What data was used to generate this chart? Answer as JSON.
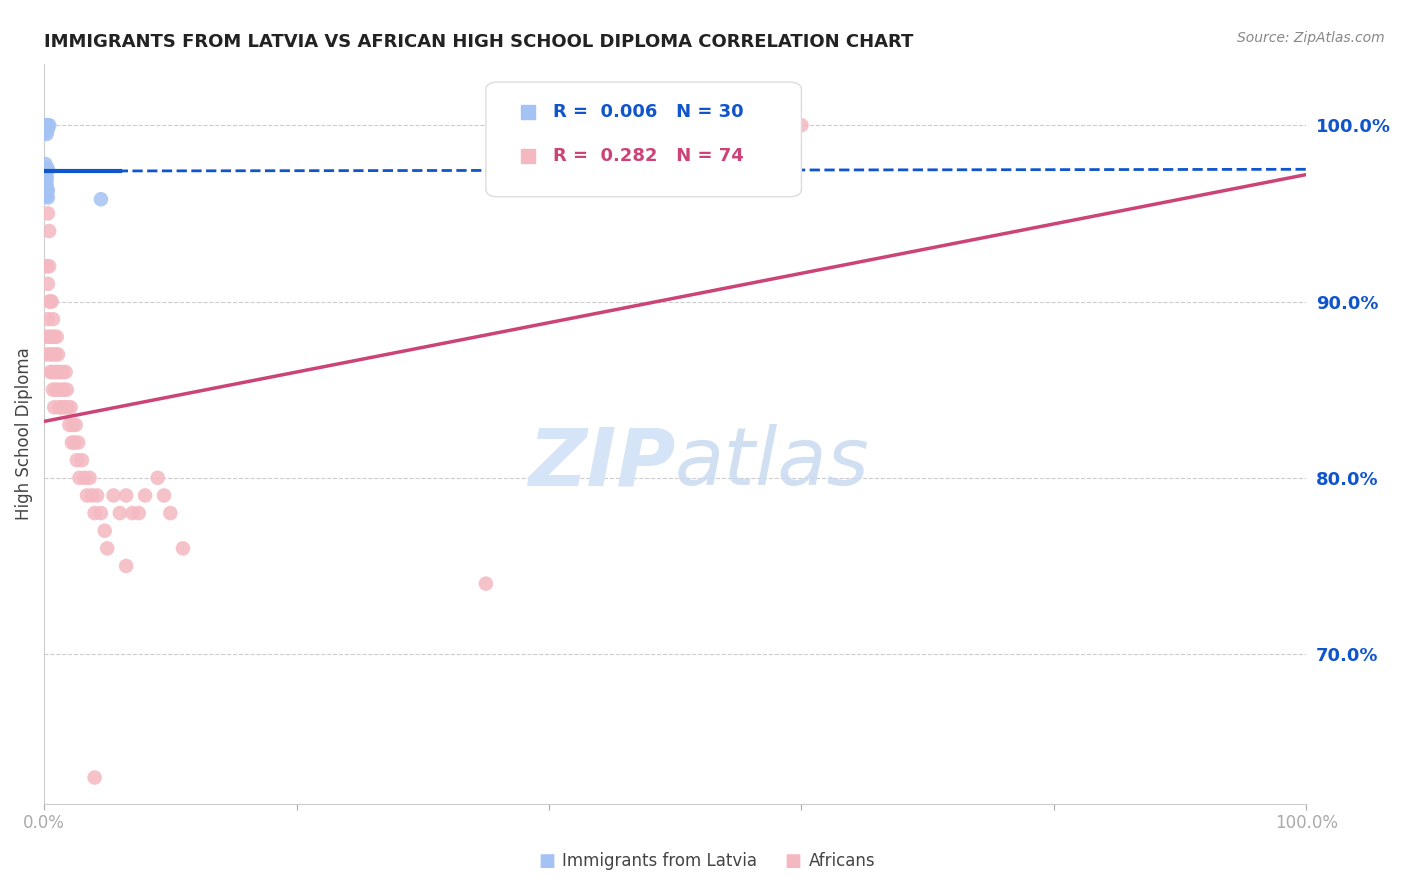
{
  "title": "IMMIGRANTS FROM LATVIA VS AFRICAN HIGH SCHOOL DIPLOMA CORRELATION CHART",
  "source": "Source: ZipAtlas.com",
  "ylabel": "High School Diploma",
  "legend_label_blue": "Immigrants from Latvia",
  "legend_label_pink": "Africans",
  "blue_color": "#a4c2f4",
  "pink_color": "#f4b8c1",
  "blue_line_color": "#1155cc",
  "pink_line_color": "#cc4477",
  "right_tick_color": "#1155cc",
  "ytick_labels": [
    "100.0%",
    "90.0%",
    "80.0%",
    "70.0%"
  ],
  "ytick_values": [
    1.0,
    0.9,
    0.8,
    0.7
  ],
  "blue_dots_x": [
    0.001,
    0.002,
    0.003,
    0.002,
    0.003,
    0.004,
    0.003,
    0.002,
    0.001,
    0.002,
    0.001,
    0.002,
    0.003,
    0.002,
    0.001,
    0.001,
    0.002,
    0.001,
    0.002,
    0.001,
    0.001,
    0.002,
    0.001,
    0.002,
    0.003,
    0.002,
    0.001,
    0.002,
    0.003,
    0.045
  ],
  "blue_dots_y": [
    1.0,
    1.0,
    1.0,
    1.0,
    0.999,
    1.0,
    0.998,
    0.997,
    0.996,
    0.995,
    0.978,
    0.976,
    0.975,
    0.974,
    0.973,
    0.972,
    0.971,
    0.97,
    0.969,
    0.968,
    0.967,
    0.966,
    0.965,
    0.964,
    0.963,
    0.962,
    0.961,
    0.96,
    0.959,
    0.958
  ],
  "pink_dots_x": [
    0.001,
    0.002,
    0.002,
    0.003,
    0.003,
    0.003,
    0.004,
    0.004,
    0.004,
    0.004,
    0.005,
    0.005,
    0.005,
    0.005,
    0.006,
    0.006,
    0.006,
    0.007,
    0.007,
    0.007,
    0.008,
    0.008,
    0.008,
    0.009,
    0.009,
    0.01,
    0.01,
    0.011,
    0.011,
    0.012,
    0.012,
    0.013,
    0.013,
    0.014,
    0.015,
    0.015,
    0.016,
    0.017,
    0.017,
    0.018,
    0.019,
    0.02,
    0.021,
    0.022,
    0.023,
    0.024,
    0.025,
    0.026,
    0.027,
    0.028,
    0.03,
    0.032,
    0.034,
    0.036,
    0.038,
    0.04,
    0.042,
    0.045,
    0.048,
    0.05,
    0.055,
    0.06,
    0.065,
    0.07,
    0.075,
    0.08,
    0.09,
    0.095,
    0.1,
    0.11,
    0.35,
    0.6,
    0.065,
    0.04
  ],
  "pink_dots_y": [
    0.88,
    0.87,
    0.92,
    0.95,
    0.91,
    0.89,
    0.94,
    0.92,
    0.9,
    0.88,
    0.9,
    0.88,
    0.87,
    0.86,
    0.9,
    0.88,
    0.86,
    0.89,
    0.87,
    0.85,
    0.88,
    0.86,
    0.84,
    0.87,
    0.85,
    0.88,
    0.86,
    0.87,
    0.85,
    0.86,
    0.84,
    0.86,
    0.84,
    0.85,
    0.86,
    0.84,
    0.85,
    0.86,
    0.84,
    0.85,
    0.84,
    0.83,
    0.84,
    0.82,
    0.83,
    0.82,
    0.83,
    0.81,
    0.82,
    0.8,
    0.81,
    0.8,
    0.79,
    0.8,
    0.79,
    0.78,
    0.79,
    0.78,
    0.77,
    0.76,
    0.79,
    0.78,
    0.79,
    0.78,
    0.78,
    0.79,
    0.8,
    0.79,
    0.78,
    0.76,
    0.74,
    1.0,
    0.75,
    0.63
  ],
  "blue_trend_x": [
    0.0,
    1.0
  ],
  "blue_trend_y": [
    0.974,
    0.975
  ],
  "pink_trend_x": [
    0.0,
    1.0
  ],
  "pink_trend_y": [
    0.832,
    0.972
  ],
  "xlim": [
    0.0,
    1.0
  ],
  "ylim": [
    0.615,
    1.035
  ]
}
